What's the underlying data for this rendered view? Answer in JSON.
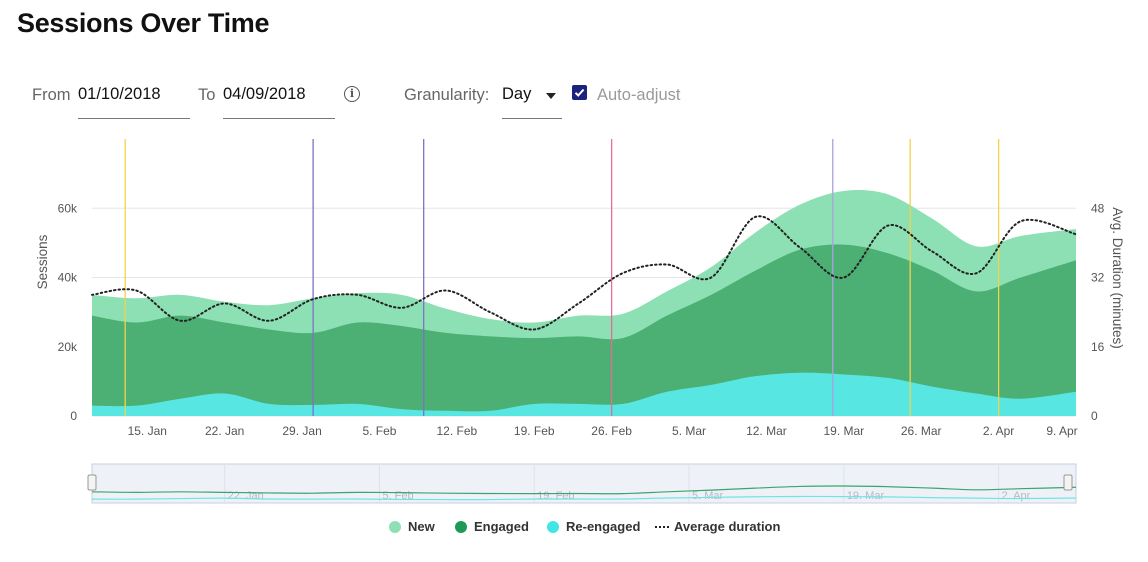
{
  "title": "Sessions Over Time",
  "controls": {
    "from_label": "From",
    "from_value": "01/10/2018",
    "to_label": "To",
    "to_value": "04/09/2018",
    "info_icon": "i",
    "granularity_label": "Granularity:",
    "granularity_value": "Day",
    "auto_adjust_label": "Auto-adjust",
    "auto_adjust_checked": true
  },
  "chart_data": {
    "type": "area",
    "x_start": "2018-01-10",
    "x_end": "2018-04-09",
    "x_tick_labels": [
      "15. Jan",
      "22. Jan",
      "29. Jan",
      "5. Feb",
      "12. Feb",
      "19. Feb",
      "26. Feb",
      "5. Mar",
      "12. Mar",
      "19. Mar",
      "26. Mar",
      "2. Apr",
      "9. Apr"
    ],
    "y_left": {
      "label": "Sessions",
      "ticks": [
        "0",
        "20k",
        "40k",
        "60k"
      ],
      "range": [
        0,
        80000
      ]
    },
    "y_right": {
      "label": "Avg. Duration (minutes)",
      "ticks": [
        "0",
        "16",
        "32",
        "48"
      ],
      "range": [
        0,
        64
      ]
    },
    "x": [
      "2018-01-10",
      "2018-01-14",
      "2018-01-18",
      "2018-01-22",
      "2018-01-26",
      "2018-01-30",
      "2018-02-03",
      "2018-02-07",
      "2018-02-11",
      "2018-02-15",
      "2018-02-19",
      "2018-02-23",
      "2018-02-27",
      "2018-03-03",
      "2018-03-07",
      "2018-03-11",
      "2018-03-15",
      "2018-03-19",
      "2018-03-23",
      "2018-03-27",
      "2018-03-31",
      "2018-04-04",
      "2018-04-09"
    ],
    "series": [
      {
        "name": "New",
        "color": "#8ce0b4",
        "axis": "left",
        "values": [
          35000,
          34000,
          35000,
          33000,
          32000,
          34000,
          35500,
          35000,
          31000,
          28000,
          27000,
          29000,
          29500,
          36000,
          43000,
          53000,
          61000,
          65000,
          64000,
          57000,
          49000,
          52000,
          54000
        ]
      },
      {
        "name": "Engaged",
        "color": "#4caf73",
        "axis": "left",
        "values": [
          29000,
          27000,
          29000,
          27000,
          25000,
          24000,
          27000,
          26000,
          24000,
          23000,
          22500,
          23000,
          22500,
          29000,
          35000,
          42000,
          48000,
          49500,
          47000,
          42000,
          36000,
          40000,
          45000
        ]
      },
      {
        "name": "Re-engaged",
        "color": "#57e6e2",
        "axis": "left",
        "values": [
          3000,
          3000,
          5000,
          6500,
          3500,
          3200,
          3500,
          2000,
          1500,
          1500,
          3500,
          3500,
          3500,
          7000,
          9000,
          11500,
          12500,
          12000,
          11000,
          8500,
          6500,
          5000,
          7000
        ]
      },
      {
        "name": "Average duration",
        "color": "#222222",
        "axis": "right",
        "style": "dotted",
        "values": [
          28,
          29,
          22,
          26,
          22,
          27,
          28,
          25,
          29,
          24,
          20,
          26,
          33,
          35,
          32,
          46,
          39,
          32,
          44,
          38,
          33,
          45,
          42
        ]
      }
    ],
    "plot_bands": [
      {
        "date": "2018-01-13",
        "color": "#f2d34c"
      },
      {
        "date": "2018-01-30",
        "color": "#7e72c8"
      },
      {
        "date": "2018-02-09",
        "color": "#7e72c8"
      },
      {
        "date": "2018-02-26",
        "color": "#e0709a"
      },
      {
        "date": "2018-03-18",
        "color": "#a9a2e0"
      },
      {
        "date": "2018-03-25",
        "color": "#f2d34c"
      },
      {
        "date": "2018-04-02",
        "color": "#f2d34c"
      }
    ],
    "navigator": {
      "tick_labels": [
        "22. Jan",
        "5. Feb",
        "19. Feb",
        "5. Mar",
        "19. Mar",
        "2. Apr"
      ]
    },
    "grid": true,
    "legend_position": "bottom"
  }
}
